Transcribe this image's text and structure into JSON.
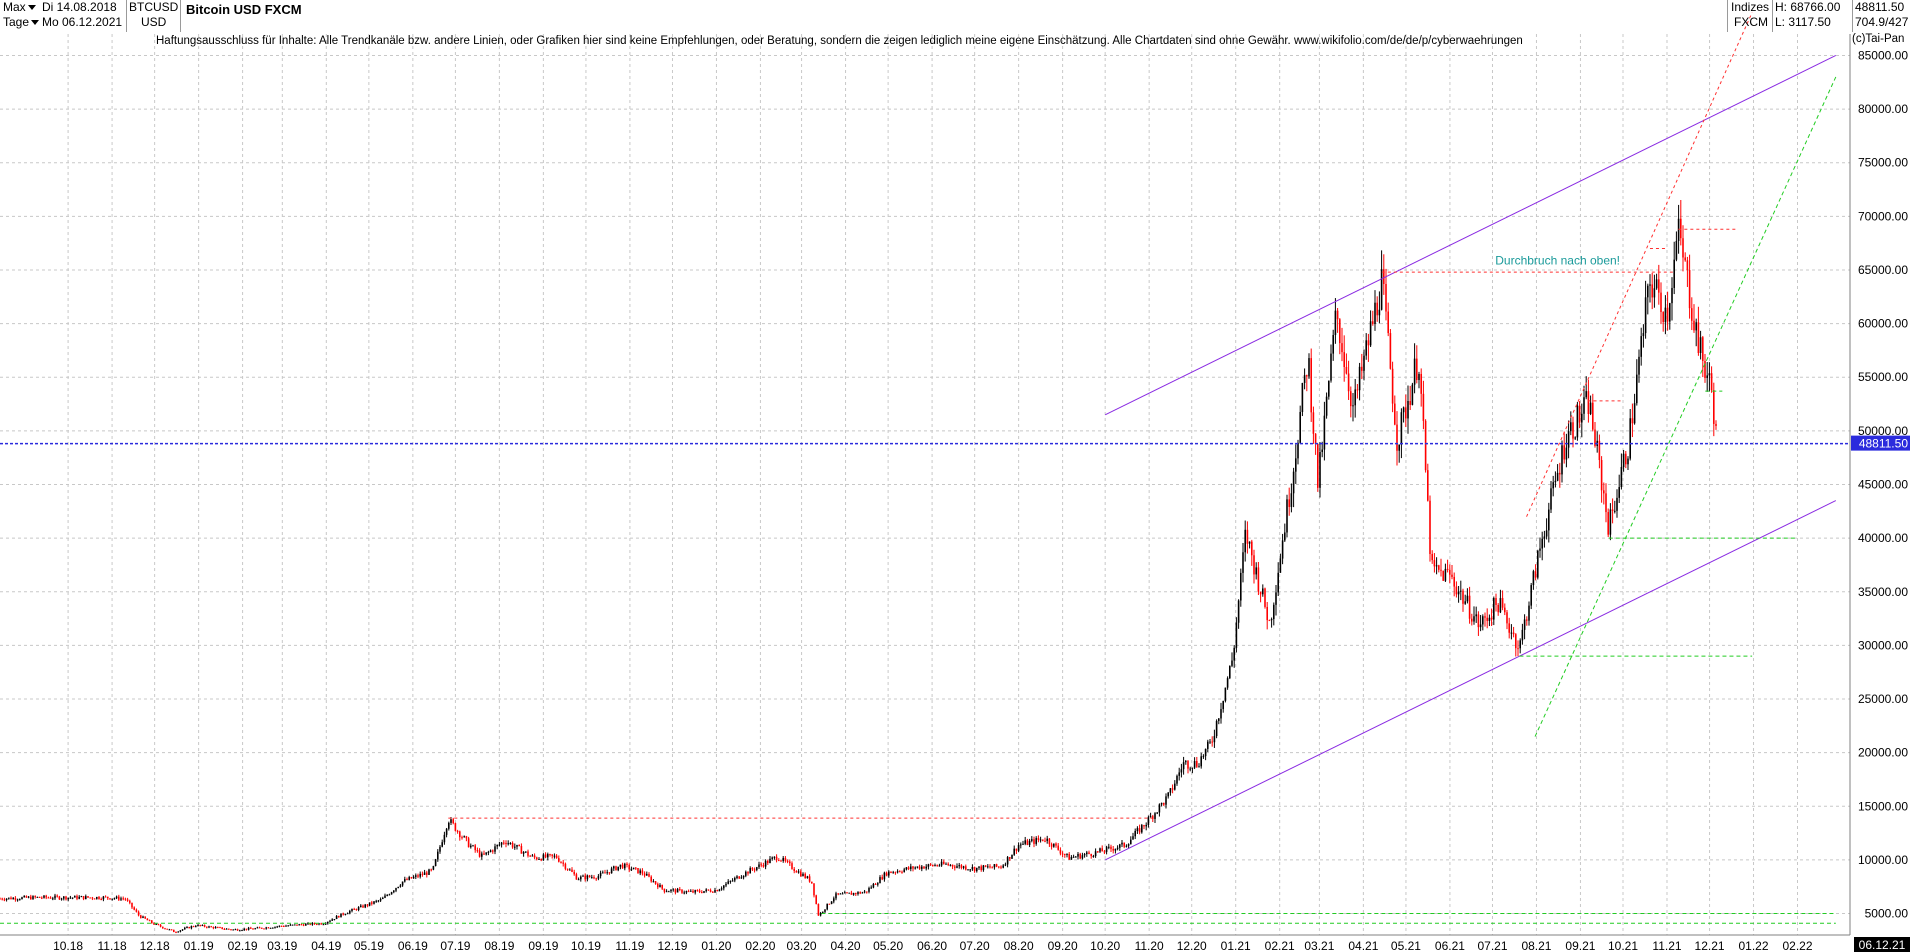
{
  "header": {
    "period_select": "Max",
    "interval_select": "Tage",
    "date_from": "Di 14.08.2018",
    "date_to": "Mo 06.12.2021",
    "symbol": "BTCUSD",
    "currency": "USD",
    "title": "Bitcoin USD FXCM",
    "category": "Indizes",
    "exchange": "FXCM",
    "high": "H: 68766.00",
    "low": "L: 3117.50",
    "last": "48811.50",
    "sub_value": "704.9/427"
  },
  "disclaimer": "Haftungsausschluss für Inhalte: Alle Trendkanäle bzw. andere Linien, oder Grafiken hier sind keine Empfehlungen, oder Beratung, sondern die zeigen lediglich meine eigene Einschätzung. Alle Chartdaten sind ohne Gewähr.  www.wikifolio.com/de/de/p/cyberwaehrungen",
  "copyright": "(c)Tai-Pan",
  "colors": {
    "up_candle": "#000000",
    "down_candle": "#ff0000",
    "trend_channel": "#8a2be2",
    "support_lines": "#22cc22",
    "resistance_lines": "#ff3030",
    "last_price_line": "#2b2bdd",
    "annotation": "#1a9a9a",
    "grid": "#c8c8c8"
  },
  "chart_data": {
    "type": "candlestick",
    "title": "Bitcoin USD FXCM",
    "ylim": [
      3000,
      87000
    ],
    "y_ticks": [
      "5000.00",
      "10000.00",
      "15000.00",
      "20000.00",
      "25000.00",
      "30000.00",
      "35000.00",
      "40000.00",
      "45000.00",
      "50000.00",
      "55000.00",
      "60000.00",
      "65000.00",
      "70000.00",
      "75000.00",
      "80000.00",
      "85000.00"
    ],
    "x_ticks": [
      "10.18",
      "11.18",
      "12.18",
      "01.19",
      "02.19",
      "03.19",
      "04.19",
      "05.19",
      "06.19",
      "07.19",
      "08.19",
      "09.19",
      "10.19",
      "11.19",
      "12.19",
      "01.20",
      "02.20",
      "03.20",
      "04.20",
      "05.20",
      "06.20",
      "07.20",
      "08.20",
      "09.20",
      "10.20",
      "11.20",
      "12.20",
      "01.21",
      "02.21",
      "03.21",
      "04.21",
      "05.21",
      "06.21",
      "07.21",
      "08.21",
      "09.21",
      "10.21",
      "11.21",
      "12.21",
      "01.22",
      "02.22"
    ],
    "x_axis_end_label": "06.12.21",
    "last_price_label": "48811.50",
    "last_price": 48811.5,
    "high": 68766.0,
    "low": 3117.5,
    "price_path": [
      [
        "2018-08-14",
        6400
      ],
      [
        "2018-09-10",
        6500
      ],
      [
        "2018-10-01",
        6500
      ],
      [
        "2018-10-25",
        6500
      ],
      [
        "2018-11-10",
        6400
      ],
      [
        "2018-11-20",
        4800
      ],
      [
        "2018-12-01",
        4000
      ],
      [
        "2018-12-15",
        3300
      ],
      [
        "2018-12-30",
        3900
      ],
      [
        "2019-01-25",
        3500
      ],
      [
        "2019-02-10",
        3600
      ],
      [
        "2019-03-01",
        3850
      ],
      [
        "2019-03-30",
        4100
      ],
      [
        "2019-04-15",
        5100
      ],
      [
        "2019-05-10",
        6300
      ],
      [
        "2019-05-25",
        8000
      ],
      [
        "2019-06-15",
        9000
      ],
      [
        "2019-06-26",
        13800
      ],
      [
        "2019-07-10",
        11500
      ],
      [
        "2019-07-20",
        10300
      ],
      [
        "2019-08-05",
        11800
      ],
      [
        "2019-08-25",
        10200
      ],
      [
        "2019-09-10",
        10300
      ],
      [
        "2019-09-25",
        8300
      ],
      [
        "2019-10-10",
        8500
      ],
      [
        "2019-10-26",
        9500
      ],
      [
        "2019-11-10",
        8800
      ],
      [
        "2019-11-25",
        7200
      ],
      [
        "2019-12-15",
        7000
      ],
      [
        "2020-01-01",
        7200
      ],
      [
        "2020-01-20",
        8700
      ],
      [
        "2020-02-13",
        10300
      ],
      [
        "2020-03-08",
        8000
      ],
      [
        "2020-03-13",
        4800
      ],
      [
        "2020-03-25",
        6700
      ],
      [
        "2020-04-15",
        7000
      ],
      [
        "2020-04-30",
        8800
      ],
      [
        "2020-05-20",
        9300
      ],
      [
        "2020-06-10",
        9600
      ],
      [
        "2020-07-01",
        9200
      ],
      [
        "2020-07-20",
        9400
      ],
      [
        "2020-08-01",
        11400
      ],
      [
        "2020-08-20",
        12000
      ],
      [
        "2020-09-05",
        10200
      ],
      [
        "2020-09-25",
        10700
      ],
      [
        "2020-10-15",
        11400
      ],
      [
        "2020-10-30",
        13500
      ],
      [
        "2020-11-15",
        16000
      ],
      [
        "2020-11-25",
        19000
      ],
      [
        "2020-12-05",
        19000
      ],
      [
        "2020-12-15",
        21000
      ],
      [
        "2020-12-30",
        28900
      ],
      [
        "2021-01-08",
        40500
      ],
      [
        "2021-01-25",
        32000
      ],
      [
        "2021-02-10",
        46000
      ],
      [
        "2021-02-21",
        57000
      ],
      [
        "2021-02-28",
        45000
      ],
      [
        "2021-03-13",
        61000
      ],
      [
        "2021-03-25",
        52000
      ],
      [
        "2021-04-14",
        64000
      ],
      [
        "2021-04-25",
        49000
      ],
      [
        "2021-05-10",
        57000
      ],
      [
        "2021-05-19",
        37000
      ],
      [
        "2021-06-01",
        36500
      ],
      [
        "2021-06-22",
        31800
      ],
      [
        "2021-07-05",
        34000
      ],
      [
        "2021-07-20",
        29800
      ],
      [
        "2021-08-05",
        40000
      ],
      [
        "2021-08-22",
        49500
      ],
      [
        "2021-09-07",
        52700
      ],
      [
        "2021-09-21",
        41000
      ],
      [
        "2021-10-05",
        49000
      ],
      [
        "2021-10-20",
        64000
      ],
      [
        "2021-11-01",
        61000
      ],
      [
        "2021-11-09",
        68500
      ],
      [
        "2021-11-25",
        57000
      ],
      [
        "2021-12-03",
        53500
      ],
      [
        "2021-12-06",
        48811.5
      ]
    ],
    "trend_lines": [
      {
        "kind": "upper-channel",
        "from": [
          "2020-10-01",
          51500
        ],
        "to": [
          "2022-02-28",
          85000
        ]
      },
      {
        "kind": "lower-channel",
        "from": [
          "2020-10-01",
          10000
        ],
        "to": [
          "2022-02-28",
          43500
        ]
      },
      {
        "kind": "support-steep",
        "from": [
          "2021-07-31",
          21500
        ],
        "to": [
          "2022-02-28",
          83000
        ]
      },
      {
        "kind": "resistance-steep",
        "from": [
          "2021-07-25",
          42000
        ],
        "to": [
          "2021-12-31",
          89000
        ]
      },
      {
        "kind": "support-level",
        "from": [
          "2018-08-14",
          4100
        ],
        "to": [
          "2022-02-28",
          4100
        ]
      },
      {
        "kind": "support-level",
        "from": [
          "2020-03-15",
          5000
        ],
        "to": [
          "2022-02-28",
          5000
        ]
      },
      {
        "kind": "support-level",
        "from": [
          "2021-07-20",
          29000
        ],
        "to": [
          "2021-12-31",
          29000
        ]
      },
      {
        "kind": "support-level",
        "from": [
          "2021-09-21",
          40000
        ],
        "to": [
          "2022-01-31",
          40000
        ]
      },
      {
        "kind": "support-level",
        "from": [
          "2021-11-28",
          53700
        ],
        "to": [
          "2021-12-10",
          53700
        ]
      },
      {
        "kind": "resistance-level",
        "from": [
          "2019-06-26",
          13900
        ],
        "to": [
          "2020-11-05",
          13900
        ]
      },
      {
        "kind": "resistance-level",
        "from": [
          "2021-04-14",
          64800
        ],
        "to": [
          "2021-11-07",
          64800
        ]
      },
      {
        "kind": "resistance-level",
        "from": [
          "2021-09-06",
          52800
        ],
        "to": [
          "2021-09-30",
          52800
        ]
      },
      {
        "kind": "resistance-level",
        "from": [
          "2021-11-09",
          68800
        ],
        "to": [
          "2021-12-20",
          68800
        ]
      },
      {
        "kind": "resistance-level",
        "from": [
          "2021-10-20",
          67000
        ],
        "to": [
          "2021-11-01",
          67000
        ]
      }
    ],
    "annotations": [
      {
        "text": "Durchbruch nach oben!",
        "at": [
          "2021-07-10",
          65500
        ]
      }
    ]
  }
}
